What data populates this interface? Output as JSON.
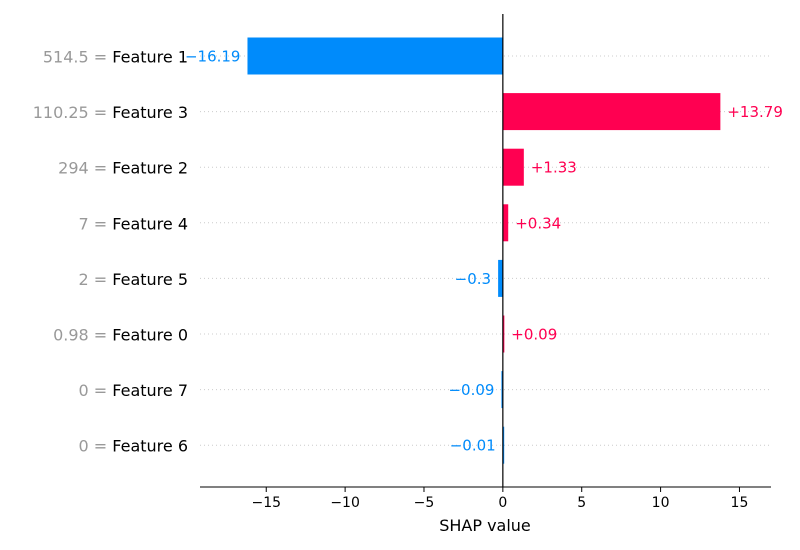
{
  "chart_data": {
    "type": "bar",
    "orientation": "horizontal",
    "xlabel": "SHAP value",
    "xlim": [
      -19.2,
      17.0
    ],
    "xticks": [
      {
        "value": -15,
        "label": "−15"
      },
      {
        "value": -10,
        "label": "−10"
      },
      {
        "value": -5,
        "label": "−5"
      },
      {
        "value": 0,
        "label": "0"
      },
      {
        "value": 5,
        "label": "5"
      },
      {
        "value": 10,
        "label": "10"
      },
      {
        "value": 15,
        "label": "15"
      }
    ],
    "bars": [
      {
        "feature_value": "514.5",
        "feature": "Feature 1",
        "value": -16.19,
        "label": "−16.19"
      },
      {
        "feature_value": "110.25",
        "feature": "Feature 3",
        "value": 13.79,
        "label": "+13.79"
      },
      {
        "feature_value": "294",
        "feature": "Feature 2",
        "value": 1.33,
        "label": "+1.33"
      },
      {
        "feature_value": "7",
        "feature": "Feature 4",
        "value": 0.34,
        "label": "+0.34"
      },
      {
        "feature_value": "2",
        "feature": "Feature 5",
        "value": -0.3,
        "label": "−0.3"
      },
      {
        "feature_value": "0.98",
        "feature": "Feature 0",
        "value": 0.09,
        "label": "+0.09"
      },
      {
        "feature_value": "0",
        "feature": "Feature 7",
        "value": -0.09,
        "label": "−0.09"
      },
      {
        "feature_value": "0",
        "feature": "Feature 6",
        "value": -0.01,
        "label": "−0.01"
      }
    ],
    "separator": " = ",
    "grid": "horizontal dotted per row",
    "colors": {
      "positive": "#ff0051",
      "negative": "#008bfb",
      "zero_line": "#000000",
      "grid": "#cccccc",
      "feature_value_text": "#999999"
    }
  }
}
